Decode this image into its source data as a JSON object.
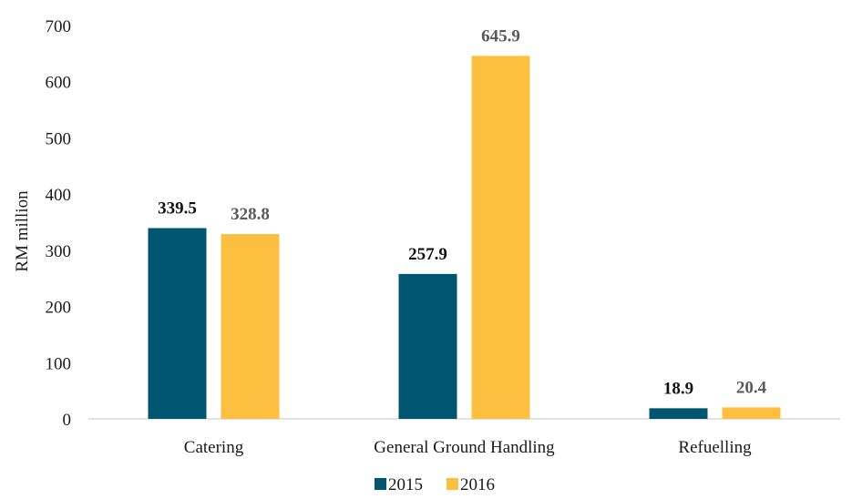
{
  "chart_data": {
    "type": "bar",
    "title": "",
    "xlabel": "",
    "ylabel": "RM million",
    "ylim": [
      0,
      700
    ],
    "yticks": [
      0,
      100,
      200,
      300,
      400,
      500,
      600,
      700
    ],
    "grid": false,
    "legend_position": "bottom",
    "categories": [
      "Catering",
      "General Ground Handling",
      "Refuelling"
    ],
    "series": [
      {
        "name": "2015",
        "color": "#005670",
        "label_color": "#111111",
        "values": [
          339.5,
          257.9,
          18.9
        ],
        "labels": [
          "339.5",
          "257.9",
          "18.9"
        ]
      },
      {
        "name": "2016",
        "color": "#FDBF3F",
        "label_color": "#595959",
        "values": [
          328.8,
          645.9,
          20.4
        ],
        "labels": [
          "328.8",
          "645.9",
          "20.4"
        ]
      }
    ]
  }
}
